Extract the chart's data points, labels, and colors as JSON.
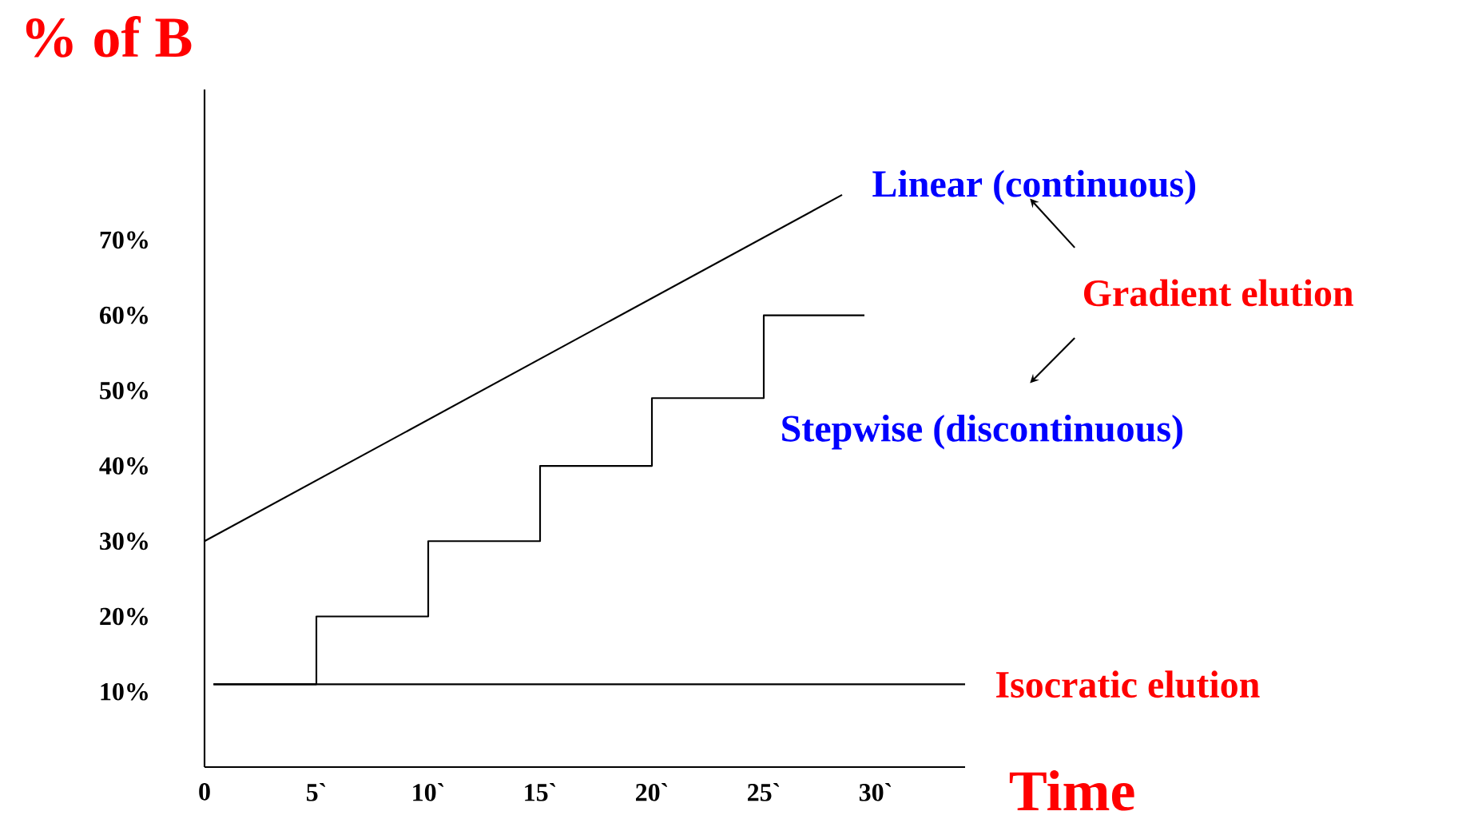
{
  "chart_data": {
    "type": "line",
    "xlabel": "Time",
    "ylabel": "% of B",
    "series": [
      {
        "name": "Linear (continuous)",
        "color": "#000000",
        "x": [
          0,
          28.5
        ],
        "values": [
          30,
          76
        ]
      },
      {
        "name": "Stepwise (discontinuous)",
        "color": "#000000",
        "type": "step",
        "x": [
          0.4,
          5,
          10,
          15,
          20,
          25,
          29.5
        ],
        "values": [
          11,
          20,
          30,
          40,
          49,
          60,
          60
        ]
      },
      {
        "name": "Isocratic elution",
        "color": "#000000",
        "x": [
          0.4,
          34
        ],
        "values": [
          11,
          11
        ]
      }
    ],
    "annotations": [
      "Gradient elution"
    ],
    "xlim": [
      0,
      34
    ],
    "ylim": [
      0,
      90
    ],
    "xticks": [
      0,
      {
        "value": 5,
        "label": "5`"
      },
      {
        "value": 10,
        "label": "10`"
      },
      {
        "value": 15,
        "label": "15`"
      },
      {
        "value": 20,
        "label": "20`"
      },
      {
        "value": 25,
        "label": "25`"
      },
      {
        "value": 30,
        "label": "30`"
      }
    ],
    "yticks": [
      {
        "value": 10,
        "label": "10%"
      },
      {
        "value": 20,
        "label": "20%"
      },
      {
        "value": 30,
        "label": "30%"
      },
      {
        "value": 40,
        "label": "40%"
      },
      {
        "value": 50,
        "label": "50%"
      },
      {
        "value": 60,
        "label": "60%"
      },
      {
        "value": 70,
        "label": "70%"
      }
    ],
    "grid": false,
    "marker": "none",
    "line_style": "solid"
  }
}
